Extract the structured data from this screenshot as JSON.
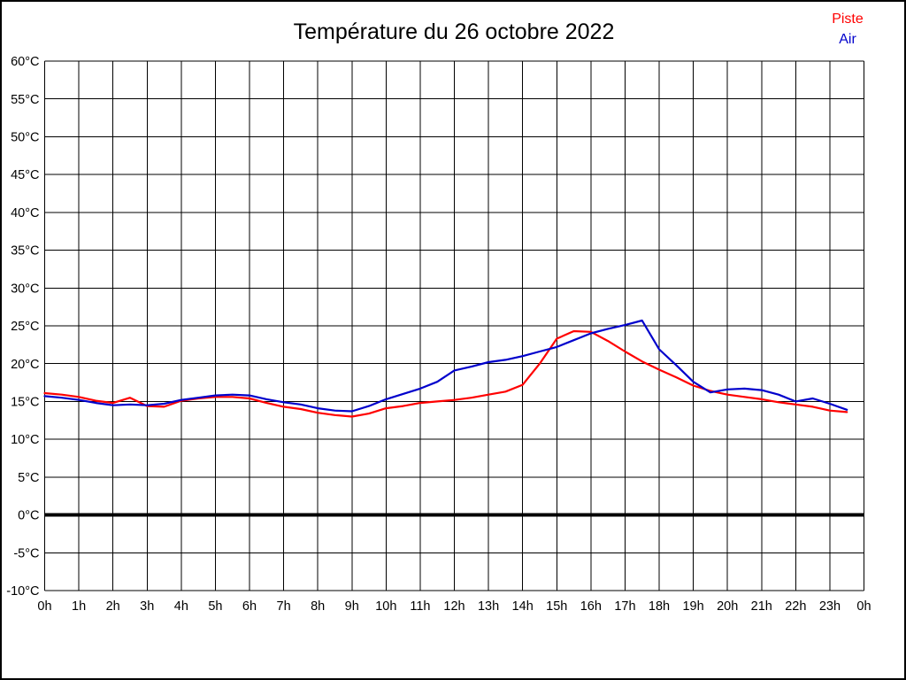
{
  "chart_data": {
    "type": "line",
    "title": "Température du 26 octobre 2022",
    "x_unit": "hour of day",
    "x_start": 0,
    "x_step": 0.5,
    "x_range": [
      0,
      24
    ],
    "ylim": [
      -10,
      60
    ],
    "y_tick_step": 5,
    "grid": "on",
    "grid_color": "#000000",
    "zero_line": {
      "value": 0,
      "thickness": 4,
      "color": "#000000"
    },
    "legend_position": "top-right",
    "x_tick_labels": [
      "0h",
      "1h",
      "2h",
      "3h",
      "4h",
      "5h",
      "6h",
      "7h",
      "8h",
      "9h",
      "10h",
      "11h",
      "12h",
      "13h",
      "14h",
      "15h",
      "16h",
      "17h",
      "18h",
      "19h",
      "20h",
      "21h",
      "22h",
      "23h",
      "0h"
    ],
    "y_tick_labels": [
      "60°C",
      "55°C",
      "50°C",
      "45°C",
      "40°C",
      "35°C",
      "30°C",
      "25°C",
      "20°C",
      "15°C",
      "10°C",
      "5°C",
      "0°C",
      "-5°C",
      "-10°C"
    ],
    "series": [
      {
        "name": "Piste",
        "color": "#ff0000",
        "values": [
          16.1,
          15.9,
          15.6,
          15.1,
          14.8,
          15.5,
          14.4,
          14.3,
          15.1,
          15.4,
          15.6,
          15.6,
          15.4,
          14.8,
          14.3,
          14.0,
          13.5,
          13.2,
          13.0,
          13.4,
          14.1,
          14.4,
          14.8,
          15.0,
          15.2,
          15.5,
          15.9,
          16.3,
          17.2,
          20.0,
          23.3,
          24.3,
          24.2,
          23.0,
          21.6,
          20.3,
          19.2,
          18.2,
          17.1,
          16.4,
          15.9,
          15.6,
          15.3,
          14.9,
          14.6,
          14.3,
          13.8,
          13.6
        ]
      },
      {
        "name": "Air",
        "color": "#0000cc",
        "values": [
          15.7,
          15.5,
          15.2,
          14.8,
          14.5,
          14.6,
          14.5,
          14.7,
          15.2,
          15.5,
          15.8,
          15.9,
          15.8,
          15.3,
          14.9,
          14.6,
          14.1,
          13.8,
          13.7,
          14.4,
          15.3,
          16.0,
          16.7,
          17.6,
          19.1,
          19.6,
          20.2,
          20.5,
          21.0,
          21.6,
          22.2,
          23.1,
          24.0,
          24.6,
          25.1,
          25.7,
          21.9,
          19.8,
          17.6,
          16.2,
          16.6,
          16.7,
          16.5,
          15.9,
          15.0,
          15.4,
          14.7,
          13.9
        ]
      }
    ]
  }
}
